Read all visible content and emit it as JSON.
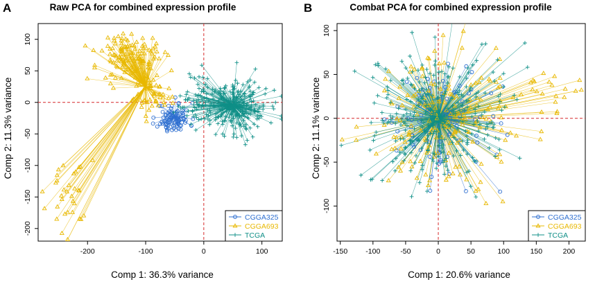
{
  "figure": {
    "panel_letters": [
      "A",
      "B"
    ]
  },
  "chart_data": [
    {
      "type": "scatter",
      "title": "Raw PCA for combined expression profile",
      "xlabel": "Comp 1: 36.3% variance",
      "ylabel": "Comp 2: 11.3% variance",
      "xlim": [
        -285,
        135
      ],
      "ylim": [
        -220,
        125
      ],
      "xticks": [
        -200,
        -100,
        0,
        100
      ],
      "yticks": [
        -200,
        -150,
        -100,
        -50,
        0,
        50,
        100
      ],
      "reference_lines": {
        "x": 0,
        "y": 0,
        "color": "#d62728"
      },
      "legend": {
        "position": "bottom-right"
      },
      "series": [
        {
          "name": "CGGA325",
          "marker": "circle",
          "color": "#2e6fd0",
          "centroid": [
            -50,
            -22
          ],
          "count": 90,
          "clusters": [
            {
              "center": [
                -52,
                -25
              ],
              "spread": [
                14,
                12
              ],
              "weight": 1
            }
          ]
        },
        {
          "name": "CGGA693",
          "marker": "triangle",
          "color": "#e8b800",
          "centroid": [
            -100,
            25
          ],
          "count": 215,
          "clusters": [
            {
              "center": [
                -125,
                72
              ],
              "spread": [
                28,
                20
              ],
              "weight": 0.62
            },
            {
              "center": [
                -238,
                -150
              ],
              "spread": [
                20,
                33
              ],
              "weight": 0.16
            },
            {
              "center": [
                -88,
                12
              ],
              "spread": [
                16,
                14
              ],
              "weight": 0.22
            }
          ]
        },
        {
          "name": "TCGA",
          "marker": "plus",
          "color": "#0f8f87",
          "centroid": [
            50,
            -5
          ],
          "count": 300,
          "clusters": [
            {
              "center": [
                50,
                -5
              ],
              "spread": [
                30,
                22
              ],
              "weight": 0.85
            },
            {
              "center": [
                -12,
                5
              ],
              "spread": [
                14,
                18
              ],
              "weight": 0.15
            }
          ]
        }
      ]
    },
    {
      "type": "scatter",
      "title": "Combat PCA for combined expression profile",
      "xlabel": "Comp 1: 20.6% variance",
      "ylabel": "Comp 2: 11.1% variance",
      "xlim": [
        -155,
        225
      ],
      "ylim": [
        -140,
        108
      ],
      "xticks": [
        -150,
        -100,
        -50,
        0,
        50,
        100,
        150,
        200
      ],
      "yticks": [
        -100,
        -50,
        0,
        50,
        100
      ],
      "reference_lines": {
        "x": 0,
        "y": 0,
        "color": "#d62728"
      },
      "legend": {
        "position": "bottom-right"
      },
      "series": [
        {
          "name": "CGGA325",
          "marker": "circle",
          "color": "#2e6fd0",
          "centroid": [
            0,
            0
          ],
          "count": 90,
          "clusters": [
            {
              "center": [
                0,
                0
              ],
              "spread": [
                40,
                32
              ],
              "weight": 1
            }
          ]
        },
        {
          "name": "CGGA693",
          "marker": "triangle",
          "color": "#e8b800",
          "centroid": [
            0,
            0
          ],
          "count": 210,
          "clusters": [
            {
              "center": [
                0,
                0
              ],
              "spread": [
                55,
                38
              ],
              "weight": 0.9
            },
            {
              "center": [
                175,
                30
              ],
              "spread": [
                25,
                15
              ],
              "weight": 0.1
            }
          ]
        },
        {
          "name": "TCGA",
          "marker": "plus",
          "color": "#0f8f87",
          "centroid": [
            0,
            0
          ],
          "count": 300,
          "clusters": [
            {
              "center": [
                0,
                0
              ],
              "spread": [
                55,
                40
              ],
              "weight": 1
            }
          ]
        }
      ]
    }
  ]
}
